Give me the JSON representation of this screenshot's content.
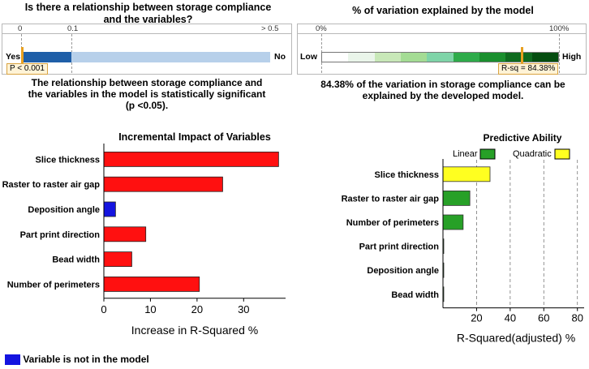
{
  "pvalue_panel": {
    "title_line1": "Is there a relationship between storage compliance",
    "title_line2": "and the  variables?",
    "ticks": [
      "0",
      "0.1",
      "> 0.5"
    ],
    "left_label": "Yes",
    "right_label": "No",
    "marker_label": "P < 0.001",
    "conclusion_line1": "The relationship between storage compliance and",
    "conclusion_line2": "the variables in the model is statistically significant",
    "conclusion_line3": "(p <0.05).",
    "colors": {
      "significant": "#1f5fa8",
      "not_significant": "#b7d0ea",
      "marker": "#e8a020"
    }
  },
  "rsq_panel": {
    "title": "% of variation explained by the model",
    "ticks": [
      "0%",
      "100%"
    ],
    "left_label": "Low",
    "right_label": "High",
    "marker_label": "R-sq = 84.38%",
    "r_squared_percent": 84.38,
    "conclusion_line1": "84.38% of the variation in storage compliance can be",
    "conclusion_line2": "explained by the developed model.",
    "gradient_colors": [
      "#ffffff",
      "#eaf5ea",
      "#c8e8b8",
      "#a4dc94",
      "#7fd4a8",
      "#2eab4a",
      "#1a8f2e",
      "#0f6b1f",
      "#054d10"
    ]
  },
  "legend_note": {
    "text": "Variable is not in the model",
    "color": "#1414e0"
  },
  "chart_data": [
    {
      "type": "bar",
      "orientation": "horizontal",
      "title": "Incremental Impact of Variables",
      "xlabel": "Increase in R-Squared %",
      "ylabel": "",
      "categories": [
        "Slice thickness",
        "Raster to raster air gap",
        "Deposition angle",
        "Part print direction",
        "Bead width",
        "Number of perimeters"
      ],
      "values": [
        37.5,
        25.5,
        2.5,
        9.0,
        6.0,
        20.5
      ],
      "in_model": [
        true,
        true,
        false,
        true,
        true,
        true
      ],
      "xlim": [
        0,
        39
      ],
      "xticks": [
        "0",
        "10",
        "20",
        "30"
      ],
      "colors": {
        "in_model": "#ff1010",
        "not_in_model": "#1414e0"
      }
    },
    {
      "type": "bar",
      "orientation": "horizontal",
      "title": "Predictive Ability",
      "xlabel": "R-Squared(adjusted) %",
      "ylabel": "",
      "categories": [
        "Slice thickness",
        "Raster to raster air gap",
        "Number of perimeters",
        "Part print direction",
        "Deposition angle",
        "Bead width"
      ],
      "series": [
        {
          "name": "Linear",
          "color": "#27a027",
          "values": [
            0,
            16,
            12,
            0.4,
            0.4,
            0.4
          ]
        },
        {
          "name": "Quadratic",
          "color": "#ffff20",
          "values": [
            28,
            0,
            0,
            0,
            0,
            0
          ]
        }
      ],
      "xlim": [
        0,
        84
      ],
      "xticks": [
        "20",
        "40",
        "60",
        "80"
      ],
      "grid": "vertical dashed",
      "legend": "top"
    }
  ]
}
